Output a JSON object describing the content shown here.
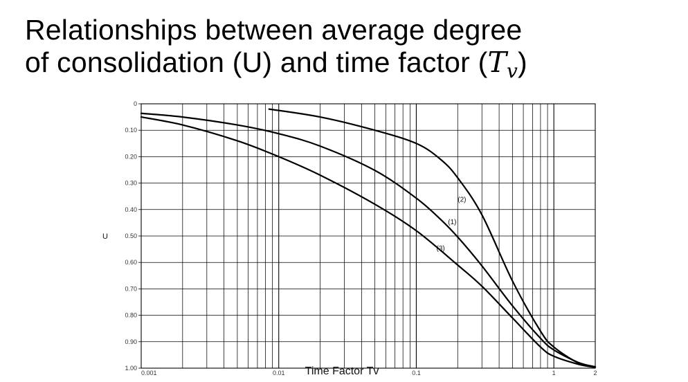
{
  "title": {
    "line1": "Relationships between average degree",
    "line2_text": "of consolidation (U) and time factor (",
    "line2_var": "T",
    "line2_sub": "v",
    "line2_end": ")"
  },
  "chart_data": {
    "type": "line",
    "xlabel": "Time Factor Tv",
    "ylabel": "U",
    "x_scale": "log",
    "xlim": [
      0.001,
      2
    ],
    "ylim": [
      0,
      1.0
    ],
    "y_inverted": true,
    "grid": true,
    "x_tick_labels": [
      {
        "value": 0.001,
        "label": "0.001"
      },
      {
        "value": 0.01,
        "label": "0.01"
      },
      {
        "value": 0.1,
        "label": "0.1"
      },
      {
        "value": 1,
        "label": "1"
      },
      {
        "value": 2,
        "label": "2"
      }
    ],
    "y_tick_labels": [
      {
        "value": 0,
        "label": "0"
      },
      {
        "value": 0.1,
        "label": "0.10"
      },
      {
        "value": 0.2,
        "label": "0.20"
      },
      {
        "value": 0.3,
        "label": "0.30"
      },
      {
        "value": 0.4,
        "label": "0.40"
      },
      {
        "value": 0.5,
        "label": "0.50"
      },
      {
        "value": 0.6,
        "label": "0.60"
      },
      {
        "value": 0.7,
        "label": "0.70"
      },
      {
        "value": 0.8,
        "label": "0.80"
      },
      {
        "value": 0.9,
        "label": "0.90"
      },
      {
        "value": 1.0,
        "label": "1.00"
      }
    ],
    "series": [
      {
        "name": "(1)",
        "x": [
          0.001,
          0.002,
          0.005,
          0.01,
          0.02,
          0.05,
          0.1,
          0.15,
          0.2,
          0.3,
          0.5,
          0.8,
          1.0,
          1.5,
          2.0
        ],
        "y": [
          0.036,
          0.05,
          0.08,
          0.113,
          0.16,
          0.252,
          0.357,
          0.437,
          0.504,
          0.613,
          0.764,
          0.887,
          0.931,
          0.978,
          0.995
        ]
      },
      {
        "name": "(2)",
        "x": [
          0.0085,
          0.02,
          0.05,
          0.1,
          0.15,
          0.2,
          0.3,
          0.5,
          0.8,
          1.0,
          1.5,
          2.0
        ],
        "y": [
          0.02,
          0.05,
          0.1,
          0.15,
          0.21,
          0.28,
          0.42,
          0.67,
          0.86,
          0.92,
          0.98,
          0.995
        ]
      },
      {
        "name": "(3)",
        "x": [
          0.001,
          0.002,
          0.005,
          0.01,
          0.02,
          0.05,
          0.1,
          0.2,
          0.3,
          0.5,
          0.8,
          1.0,
          1.5,
          2.0
        ],
        "y": [
          0.05,
          0.08,
          0.14,
          0.2,
          0.27,
          0.38,
          0.48,
          0.61,
          0.69,
          0.81,
          0.92,
          0.955,
          0.985,
          0.997
        ]
      }
    ],
    "annotations": [
      {
        "text": "(2)",
        "x": 0.2,
        "y": 0.37
      },
      {
        "text": "(1)",
        "x": 0.17,
        "y": 0.455
      },
      {
        "text": "(3)",
        "x": 0.14,
        "y": 0.555
      }
    ]
  }
}
